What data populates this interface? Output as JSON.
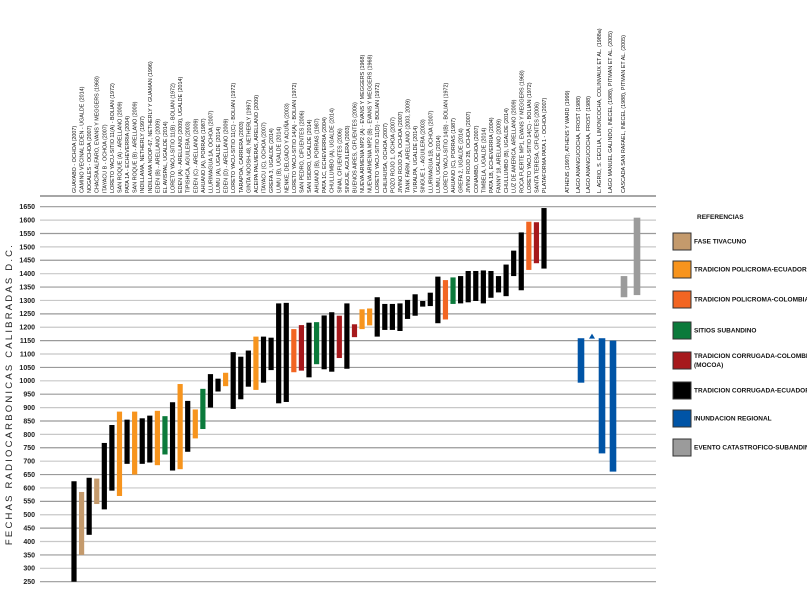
{
  "chart_data": {
    "type": "range-bar",
    "ylabel": "FECHAS RADIOCARBONICAS CALIBRADAS D.C.",
    "ylim": [
      250,
      1650
    ],
    "ytick_step": 50,
    "grid": true,
    "legend_position": "right",
    "legend": {
      "title": "REFERENCIAS",
      "entries": [
        {
          "key": "tiv",
          "label": "FASE TIVACUNO",
          "color": "#c49a6c"
        },
        {
          "key": "polec",
          "label": "TRADICION POLICROMA-ECUADOR",
          "color": "#f7941d"
        },
        {
          "key": "polcol",
          "label": "TRADICION POLICROMA-COLOMBIA",
          "color": "#f26522"
        },
        {
          "key": "sub",
          "label": "SITIOS SUBANDINO",
          "color": "#0b7a3b"
        },
        {
          "key": "corcol",
          "label": "TRADICION CORRUGADA-COLOMBIA",
          "label2": "(MOCOA)",
          "color": "#a6191c"
        },
        {
          "key": "corec",
          "label": "TRADICION CORRUGADA-ECUADOR",
          "color": "#000000"
        },
        {
          "key": "inu",
          "label": "INUNDACION REGIONAL",
          "color": "#0054a6"
        },
        {
          "key": "cat",
          "label": "EVENTO CATASTROFICO-SUBANDINO",
          "color": "#9b9b9b"
        }
      ]
    },
    "sites": [
      {
        "label": "GUAYABO - OCHOA (2007)",
        "low": 250,
        "high": 625,
        "group": "corec"
      },
      {
        "label": "CAMINO VECINAL EDEN - UGALDE (2014)",
        "low": 350,
        "high": 585,
        "group": "tiv"
      },
      {
        "label": "NOGALES - OCHOA (2007)",
        "low": 425,
        "high": 638,
        "group": "corec"
      },
      {
        "label": "CHACRA ALFARO, EVANS Y MEGGERS (1968)",
        "low": 540,
        "high": 635,
        "group": "tiv"
      },
      {
        "label": "ITAYACU B - OCHOA (2007)",
        "low": 520,
        "high": 768,
        "group": "corec"
      },
      {
        "label": "LORETO YACU-SITIO 11(A) - BOLIAN (1972)",
        "low": 590,
        "high": 835,
        "group": "corec"
      },
      {
        "label": "SAN ROQUE (A) - ARELLANO (2009)",
        "low": 570,
        "high": 885,
        "group": "polec"
      },
      {
        "label": "PATA 1A - ECHEVERRIA (2004)",
        "low": 690,
        "high": 855,
        "group": "corec"
      },
      {
        "label": "SAN ROQUE (B) - ARELLANO (2009)",
        "low": 650,
        "high": 885,
        "group": "polec"
      },
      {
        "label": "INDILLAMA, NETHERLY (1997)",
        "low": 690,
        "high": 860,
        "group": "corec"
      },
      {
        "label": "INDILLAMA NOOP-67, NETHERLY Y GUAMAN (1996)",
        "low": 695,
        "high": 870,
        "group": "corec"
      },
      {
        "label": "EDEN (B) - ARELLANO (2009)",
        "low": 685,
        "high": 888,
        "group": "polec"
      },
      {
        "label": "EL AVISPAL, UGALDE (2014)",
        "low": 725,
        "high": 868,
        "group": "sub"
      },
      {
        "label": "LORETO YACU-SITIO 11(B) - BOLIAN (1972)",
        "low": 665,
        "high": 920,
        "group": "corec"
      },
      {
        "label": "EDEN (A) - ARELLANO (2009), UGALDE (2014)",
        "low": 670,
        "high": 988,
        "group": "polec"
      },
      {
        "label": "TIPISHCA, AGUILERA (2003)",
        "low": 735,
        "high": 925,
        "group": "corec"
      },
      {
        "label": "EDEN (C) - ARELLANO (2009)",
        "low": 785,
        "high": 893,
        "group": "polec"
      },
      {
        "label": "AHUANO (A), PORRAS (1987)",
        "low": 820,
        "high": 970,
        "group": "sub"
      },
      {
        "label": "LLURIMAGUA 1A, OCHOA (2007)",
        "low": 900,
        "high": 1025,
        "group": "corec"
      },
      {
        "label": "LUMU (A), UGALDE (2014)",
        "low": 960,
        "high": 1008,
        "group": "corec"
      },
      {
        "label": "EDEN (D) - ARELLANO (2009)",
        "low": 980,
        "high": 1030,
        "group": "polec"
      },
      {
        "label": "LORETO YACU-SITIO 11(C) - BOLIAN (1972)",
        "low": 895,
        "high": 1107,
        "group": "corec"
      },
      {
        "label": "TARAPOA, CARRERA (2003)",
        "low": 931,
        "high": 1090,
        "group": "corec"
      },
      {
        "label": "GINTA NOOSH-48, NETHERLY (1997)",
        "low": 978,
        "high": 1113,
        "group": "corec"
      },
      {
        "label": "ACEIPA PALMERAS, ARELLANO (2009)",
        "low": 966,
        "high": 1165,
        "group": "polec"
      },
      {
        "label": "ITAYACU (C), OCHOA (2007)",
        "low": 993,
        "high": 1165,
        "group": "corec"
      },
      {
        "label": "GREFA 3, UGALDE (2014)",
        "low": 1040,
        "high": 1161,
        "group": "corec"
      },
      {
        "label": "LUMU (B), UGALDE (2014)",
        "low": 916,
        "high": 1289,
        "group": "corec"
      },
      {
        "label": "NENKE, DELGADO Y ACUÑA (2003)",
        "low": 921,
        "high": 1291,
        "group": "corec"
      },
      {
        "label": "LORETO YACU-SITIO 14(A) - BOLIAN (1972)",
        "low": 1032,
        "high": 1193,
        "group": "polcol"
      },
      {
        "label": "SAN PEDRO, CIFUENTES (2006)",
        "low": 1038,
        "high": 1208,
        "group": "corcol"
      },
      {
        "label": "SAN ISIDRO, UGALDE (2014)",
        "low": 1013,
        "high": 1217,
        "group": "corec"
      },
      {
        "label": "AHUANO (B), PORRAS (1987)",
        "low": 1062,
        "high": 1219,
        "group": "sub"
      },
      {
        "label": "PATA 1C, ECHEVERRIA (2004)",
        "low": 1043,
        "high": 1244,
        "group": "corec"
      },
      {
        "label": "CHULLUMBO (A), UGALDE (2014)",
        "low": 1034,
        "high": 1256,
        "group": "corec"
      },
      {
        "label": "SINAI, CIFUENTES (2006)",
        "low": 1085,
        "high": 1243,
        "group": "corcol"
      },
      {
        "label": "SINGUE, AGUILERA (2003)",
        "low": 1045,
        "high": 1289,
        "group": "corec"
      },
      {
        "label": "BUENOS AIRES, CIFUENTES (2006)",
        "low": 1163,
        "high": 1211,
        "group": "corcol"
      },
      {
        "label": "NUEVA ARMENIA MP2 (A) - EVANS Y MEGGERS (1968)",
        "low": 1193,
        "high": 1267,
        "group": "polec"
      },
      {
        "label": "NUEVA ARMENIA MP2 (B) - EVANS Y MEGGERS (1968)",
        "low": 1207,
        "high": 1270,
        "group": "polec"
      },
      {
        "label": "LORETO YACU-SITIO 11(D) - BOLIAN (1972)",
        "low": 1165,
        "high": 1312,
        "group": "corec"
      },
      {
        "label": "CHILIHUISA, OCHOA (2007)",
        "low": 1190,
        "high": 1287,
        "group": "corec"
      },
      {
        "label": "POZO ROJO 1, OCHOA (2007)",
        "low": 1190,
        "high": 1287,
        "group": "corec"
      },
      {
        "label": "JIVINO ROJO 2A, OCHOA (2007)",
        "low": 1186,
        "high": 1289,
        "group": "corec"
      },
      {
        "label": "TANK FARM, ARELLANO (2003, 2009)",
        "low": 1231,
        "high": 1302,
        "group": "corec"
      },
      {
        "label": "YURALPA, UGALDE (2014)",
        "low": 1243,
        "high": 1323,
        "group": "corec"
      },
      {
        "label": "SINGUE 1 - AGUILERA (2003)",
        "low": 1277,
        "high": 1298,
        "group": "corec"
      },
      {
        "label": "LLURIMAGUA 1B, OCHOA (2007)",
        "low": 1279,
        "high": 1329,
        "group": "corec"
      },
      {
        "label": "LUMU, UGALDE (2014)",
        "low": 1215,
        "high": 1389,
        "group": "corec"
      },
      {
        "label": "LORETO YACU-SITIO 14(B) - BOLIAN (1972)",
        "low": 1229,
        "high": 1376,
        "group": "polcol"
      },
      {
        "label": "AHUANO (C), PORRAS (1987)",
        "low": 1287,
        "high": 1386,
        "group": "sub"
      },
      {
        "label": "GREFA 2, UGALDE (2014)",
        "low": 1289,
        "high": 1391,
        "group": "corec"
      },
      {
        "label": "JIVINO ROJO 2B, OCHOA (2007)",
        "low": 1293,
        "high": 1410,
        "group": "corec"
      },
      {
        "label": "CONAMBO, OCHOA (2007)",
        "low": 1298,
        "high": 1410,
        "group": "corec"
      },
      {
        "label": "TIMBELA, UGALDE (2014)",
        "low": 1289,
        "high": 1412,
        "group": "corec"
      },
      {
        "label": "PATA 1B, ECHEVERRIA (2004)",
        "low": 1310,
        "high": 1410,
        "group": "corec"
      },
      {
        "label": "FANNY 18, ARELLANO (2009)",
        "low": 1330,
        "high": 1391,
        "group": "corec"
      },
      {
        "label": "CHULLUMBO (B), UGALDE (2014)",
        "low": 1316,
        "high": 1434,
        "group": "corec"
      },
      {
        "label": "LUZ DE AMERICA, ARELLANO (2009)",
        "low": 1391,
        "high": 1486,
        "group": "corec"
      },
      {
        "label": "ROCA FUERTE MP1, EVANS Y MEGGERS (1968)",
        "low": 1338,
        "high": 1554,
        "group": "corec"
      },
      {
        "label": "LORETO YACU-SITIO 14(C) - BOLIAN (1972)",
        "low": 1414,
        "high": 1594,
        "group": "polcol"
      },
      {
        "label": "SANTA TERESA, CIFUENTES (2006)",
        "low": 1439,
        "high": 1592,
        "group": "corcol"
      },
      {
        "label": "PLATAFORMA PATA 1 - OCHOA (2007)",
        "low": 1419,
        "high": 1645,
        "group": "corec"
      }
    ],
    "events": [
      {
        "label": "ATHENS (1997); ATHENS Y WARD (1999)",
        "low": 993,
        "high": 1159,
        "group": "inu"
      },
      {
        "label": "LAGO ANANGUCOCHA, FROST (1988)",
        "point": 1165,
        "group": "inu"
      },
      {
        "label": "LAGO ANANGUCOCHA, FROST (1988)",
        "low": 729,
        "high": 1159,
        "group": "inu"
      },
      {
        "label": "L. AGRIO, S. CECILIA, LIMONCOCHA, COLINVAUX ET AL. (1988a)",
        "low": 661,
        "high": 1150,
        "group": "inu"
      },
      {
        "label": "LAGO MANUEL GALINDO, INECEL (1988), PITMAN ET AL. (2005)",
        "low": 1312,
        "high": 1391,
        "group": "cat"
      },
      {
        "label": "CASCADA SAN RAFAEL, INECEL (1988), PITMAN ET AL. (2005)",
        "low": 1320,
        "high": 1609,
        "group": "cat"
      }
    ]
  }
}
